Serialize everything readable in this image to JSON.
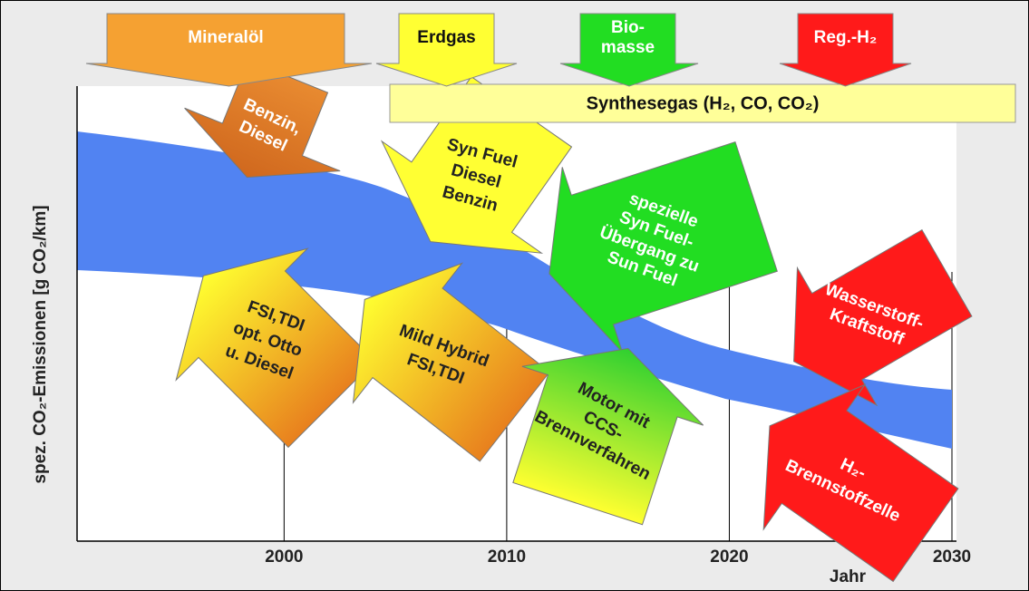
{
  "top_sources": [
    {
      "lines": [
        "Mineralöl"
      ]
    },
    {
      "lines": [
        "Erdgas"
      ]
    },
    {
      "lines": [
        "Bio-",
        "masse"
      ]
    },
    {
      "lines": [
        "Reg.-H₂"
      ]
    }
  ],
  "synthesegas": "Synthesegas (H₂, CO, CO₂)",
  "arrows": [
    {
      "lines": [
        "Benzin,",
        "Diesel"
      ]
    },
    {
      "lines": [
        "Syn Fuel",
        "Diesel",
        "Benzin"
      ]
    },
    {
      "lines": [
        "spezielle",
        "Syn Fuel-",
        "Übergang zu",
        "Sun Fuel"
      ]
    },
    {
      "lines": [
        "Wasserstoff-",
        "Kraftstoff"
      ]
    },
    {
      "lines": [
        "FSI,TDI",
        "opt. Otto",
        "u. Diesel"
      ]
    },
    {
      "lines": [
        "Mild Hybrid",
        "FSI,TDI"
      ]
    },
    {
      "lines": [
        "Motor mit",
        "CCS-",
        "Brennverfahren"
      ]
    },
    {
      "lines": [
        "H₂-",
        "Brennstoffzelle"
      ]
    }
  ],
  "y_axis_label": "spez. CO₂-Emissionen [g CO₂/km]",
  "x_axis": {
    "label": "Jahr",
    "xlim": [
      1990.7,
      2030
    ],
    "ticks": [
      2000,
      2010,
      2020,
      2030
    ]
  }
}
